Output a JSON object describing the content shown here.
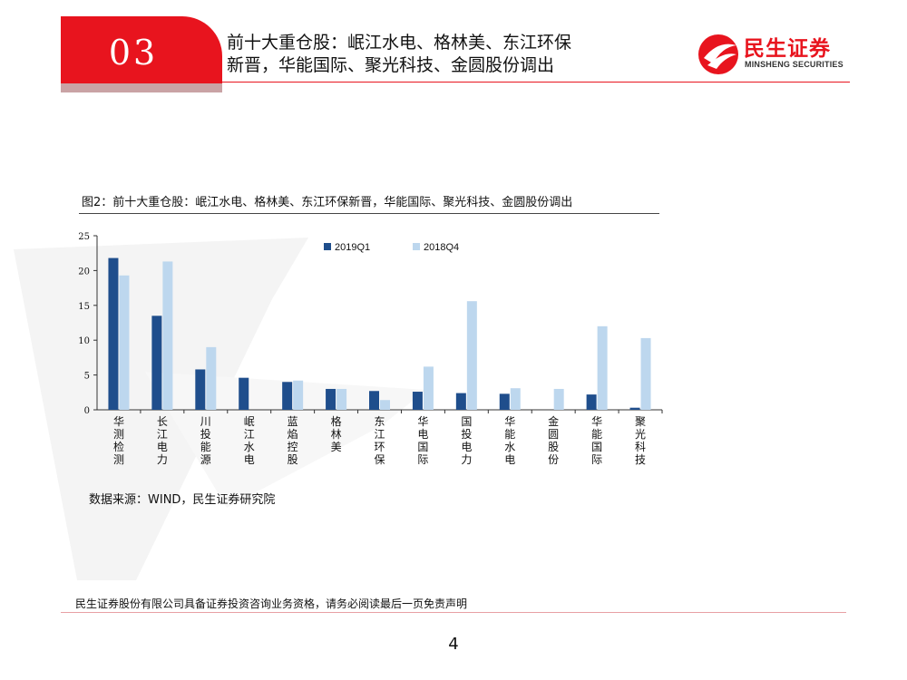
{
  "header": {
    "section_no": "03",
    "title_line1": "前十大重仓股：岷江水电、格林美、东江环保",
    "title_line2": "新晋，华能国际、聚光科技、金圆股份调出",
    "logo_text": "民生证券",
    "logo_sub": "MINSHENG SECURITIES"
  },
  "figure": {
    "title": "图2：前十大重仓股：岷江水电、格林美、东江环保新晋，华能国际、聚光科技、金圆股份调出",
    "source": "数据来源：WIND，民生证券研究院"
  },
  "chart_data": {
    "type": "bar",
    "categories": [
      "华测检测",
      "长江电力",
      "川投能源",
      "岷江水电",
      "蓝焰控股",
      "格林美",
      "东江环保",
      "华电国际",
      "国投电力",
      "华能水电",
      "金圆股份",
      "华能国际",
      "聚光科技"
    ],
    "series": [
      {
        "name": "2019Q1",
        "color": "#1f4e8c",
        "values": [
          21.8,
          13.5,
          5.8,
          4.6,
          4.0,
          3.0,
          2.7,
          2.6,
          2.4,
          2.3,
          null,
          2.2,
          0.3
        ]
      },
      {
        "name": "2018Q4",
        "color": "#bdd7ee",
        "values": [
          19.3,
          21.3,
          9.0,
          null,
          4.2,
          3.0,
          1.4,
          6.2,
          15.6,
          3.1,
          3.0,
          12.0,
          10.3
        ]
      }
    ],
    "ylim": [
      0,
      25
    ],
    "yticks": [
      "0",
      "5",
      "10",
      "15",
      "20",
      "25"
    ],
    "legend_position": "top-center",
    "grid": false
  },
  "footer": {
    "disclaimer": "民生证券股份有限公司具备证券投资咨询业务资格，请务必阅读最后一页免责声明",
    "page_number": "4"
  }
}
